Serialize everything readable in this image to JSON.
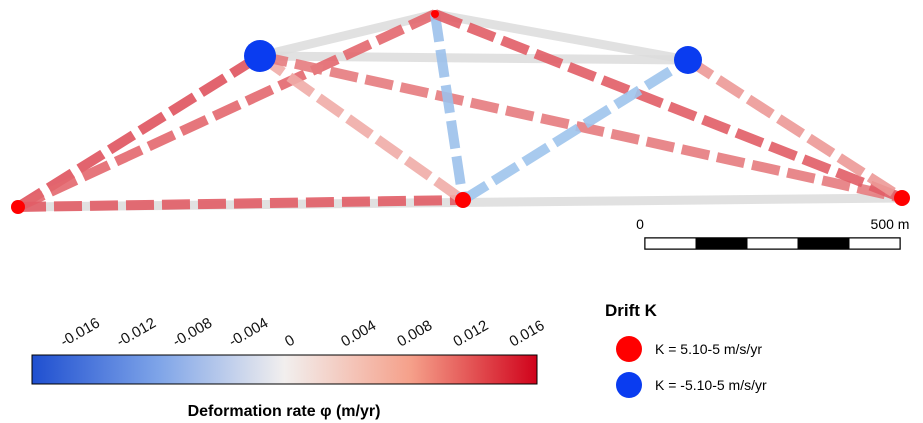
{
  "network": {
    "stations": [
      {
        "id": "A",
        "drift": "positive"
      },
      {
        "id": "B",
        "drift": "negative"
      },
      {
        "id": "C",
        "drift": "positive"
      },
      {
        "id": "D",
        "drift": "positive"
      },
      {
        "id": "E",
        "drift": "negative"
      },
      {
        "id": "F",
        "drift": "positive"
      }
    ],
    "links": [
      {
        "from": "A",
        "to": "F",
        "rate": 0.0
      },
      {
        "from": "B",
        "to": "C",
        "rate": 0.0
      },
      {
        "from": "C",
        "to": "E",
        "rate": 0.0
      },
      {
        "from": "B",
        "to": "E",
        "rate": 0.0
      },
      {
        "from": "A",
        "to": "B",
        "rate": 0.013
      },
      {
        "from": "A",
        "to": "C",
        "rate": 0.011
      },
      {
        "from": "A",
        "to": "D",
        "rate": 0.012
      },
      {
        "from": "B",
        "to": "D",
        "rate": 0.004
      },
      {
        "from": "B",
        "to": "F",
        "rate": 0.009
      },
      {
        "from": "C",
        "to": "D",
        "rate": -0.004
      },
      {
        "from": "C",
        "to": "F",
        "rate": 0.012
      },
      {
        "from": "D",
        "to": "E",
        "rate": -0.003
      },
      {
        "from": "E",
        "to": "F",
        "rate": 0.006
      }
    ]
  },
  "scalebar": {
    "min_label": "0",
    "max_label": "500 m",
    "segments": 5
  },
  "colorbar": {
    "title": "Deformation rate φ (m/yr)",
    "min": -0.018,
    "max": 0.018,
    "ticks": [
      "-0.016",
      "-0.012",
      "-0.008",
      "-0.004",
      "0",
      "0.004",
      "0.008",
      "0.012",
      "0.016"
    ],
    "tick_values": [
      -0.016,
      -0.012,
      -0.008,
      -0.004,
      0,
      0.004,
      0.008,
      0.012,
      0.016
    ],
    "colors": {
      "negative": "#1f4fd0",
      "neutral": "#f2efee",
      "positive": "#d0021b"
    }
  },
  "legend": {
    "title": "Drift K",
    "items": [
      {
        "label": "K = 5.10-5 m/s/yr",
        "color": "#ff0000"
      },
      {
        "label": "K = -5.10-5 m/s/yr",
        "color": "#0a3cf0"
      }
    ]
  }
}
